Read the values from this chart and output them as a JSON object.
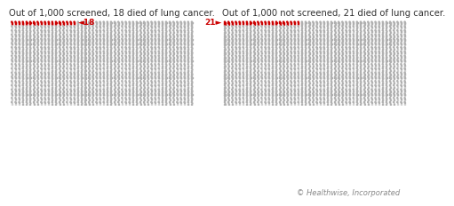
{
  "total": 1000,
  "screened_deaths": 18,
  "unscreened_deaths": 21,
  "cols": 50,
  "rows": 20,
  "title_left": "Out of 1,000 screened, 18 died of lung cancer.",
  "title_right": "Out of 1,000 not screened, 21 died of lung cancer.",
  "arrow_left": "◄",
  "arrow_right": "►",
  "color_dead": "#cc0000",
  "color_alive": "#b0b0b0",
  "bg_color": "#ffffff",
  "copyright": "© Healthwise, Incorporated",
  "title_fontsize": 7.2,
  "label_fontsize": 6.5,
  "copyright_fontsize": 6.0
}
